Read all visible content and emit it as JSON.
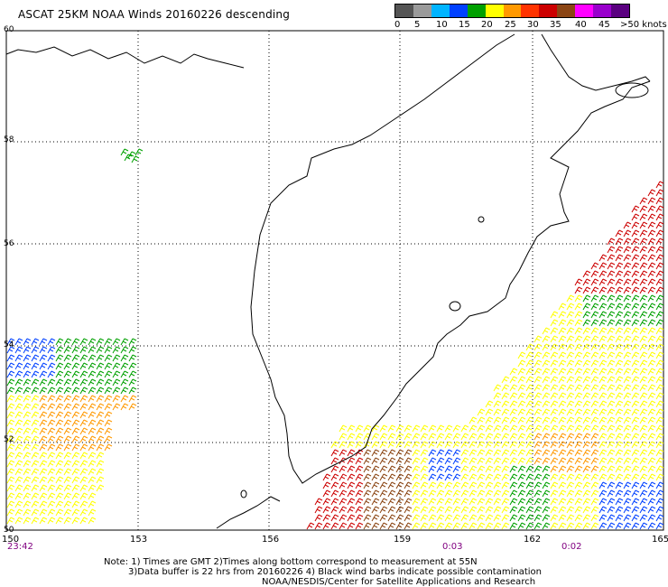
{
  "title": "ASCAT 25KM NOAA Winds 20160226 descending",
  "legend": {
    "colors": [
      "#555555",
      "#9a9a9a",
      "#00b4ff",
      "#0040ff",
      "#00a000",
      "#ffff00",
      "#ff9900",
      "#ff3300",
      "#cc0000",
      "#8b4513",
      "#ff00ff",
      "#9900cc",
      "#5a0080"
    ],
    "labels": [
      "0",
      "5",
      "10",
      "15",
      "20",
      "25",
      "30",
      "35",
      "40",
      "45",
      ">50 knots"
    ]
  },
  "lat_labels": [
    "60",
    "58",
    "56",
    "54",
    "52",
    "50"
  ],
  "lon_labels": [
    "150",
    "153",
    "156",
    "159",
    "162",
    "165"
  ],
  "pass_times": [
    "23:42",
    "0:03",
    "0:02"
  ],
  "notes": {
    "line1": "Note: 1) Times are GMT 2)Times along bottom correspond to measurement at 55N",
    "line2": "3)Data buffer is 22 hrs from 20160226 4) Black wind barbs indicate possible contamination",
    "line3": "NOAA/NESDIS/Center for Satellite Applications and Research"
  },
  "wind_colors": {
    "calm": "#00a000",
    "light": "#0040ff",
    "moderate": "#ffff00",
    "fresh": "#ff9900",
    "strong": "#cc0000",
    "gale": "#8b4513"
  }
}
